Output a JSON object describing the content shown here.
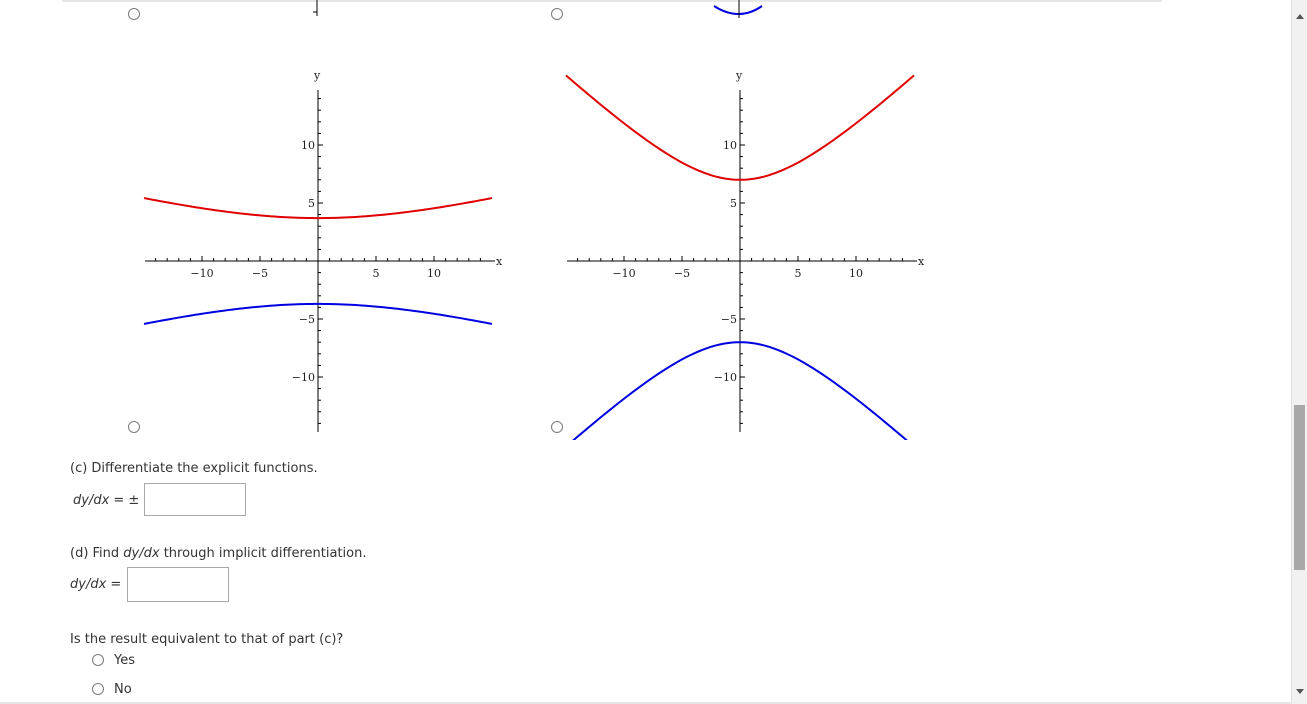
{
  "graphs": [
    {
      "id": "left",
      "x_axis_label": "x",
      "y_axis_label": "y",
      "x_ticks": [
        "−10",
        "−5",
        "5",
        "10"
      ],
      "y_ticks": [
        "10",
        "5",
        "−5",
        "−10"
      ],
      "upper_branch": {
        "color": "#e00000",
        "vertex_y": 3.7
      },
      "lower_branch": {
        "color": "#0000e0",
        "vertex_y": -3.7
      }
    },
    {
      "id": "right",
      "x_axis_label": "x",
      "y_axis_label": "y",
      "x_ticks": [
        "−10",
        "−5",
        "5",
        "10"
      ],
      "y_ticks": [
        "10",
        "5",
        "−5",
        "−10"
      ],
      "upper_branch": {
        "color": "#e00000",
        "vertex_y": 7.0
      },
      "lower_branch": {
        "color": "#0000e0",
        "vertex_y": -7.0
      }
    }
  ],
  "part_c": {
    "question": "(c) Differentiate the explicit functions.",
    "label": "dy/dx = ±",
    "value": ""
  },
  "part_d": {
    "question_prefix": "(d) Find ",
    "question_italic": "dy/dx",
    "question_suffix": " through implicit differentiation.",
    "label": "dy/dx =",
    "value": ""
  },
  "equivalence": {
    "question": "Is the result equivalent to that of part (c)?",
    "options": [
      "Yes",
      "No"
    ]
  }
}
